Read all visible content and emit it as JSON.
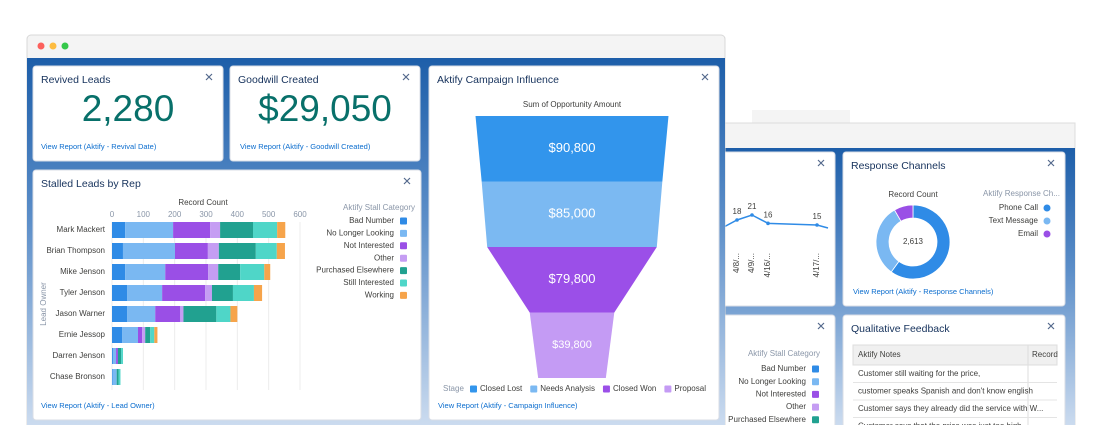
{
  "front_window": {
    "revived": {
      "title": "Revived Leads",
      "value": "2,280",
      "link": "View Report (Aktify - Revival Date)"
    },
    "goodwill": {
      "title": "Goodwill Created",
      "value": "$29,050",
      "link": "View Report (Aktify - Goodwill Created)"
    },
    "stalled": {
      "title": "Stalled Leads by Rep",
      "link": "View Report (Aktify - Lead Owner)"
    },
    "campaign": {
      "title": "Aktify Campaign Influence",
      "link": "View Report (Aktify - Campaign Influence)"
    }
  },
  "back_window": {
    "response": {
      "title": "Response Channels",
      "link": "View Report (Aktify - Response Channels)"
    },
    "feedback": {
      "title": "Qualitative Feedback",
      "columns": [
        "Aktify Notes",
        "Record"
      ],
      "rows": [
        "Customer still waiting for the price,",
        "customer speaks Spanish and don't know english",
        "Customer says they already did the service with W...",
        "Customer says that the price was just too high."
      ]
    }
  },
  "chart_data": [
    {
      "type": "hbar",
      "stacked": true,
      "x_label": "Record Count",
      "y_label": "Lead Owner",
      "legend_title": "Aktify Stall Category",
      "categories": [
        "Mark Mackert",
        "Brian Thompson",
        "Mike Jenson",
        "Tyler Jenson",
        "Jason Warner",
        "Ernie Jessop",
        "Darren Jenson",
        "Chase Bronson"
      ],
      "xlim": [
        0,
        600
      ],
      "xticks": [
        0,
        100,
        200,
        300,
        400,
        500,
        600
      ],
      "grid": true,
      "series": [
        {
          "name": "Bad Number",
          "color": "#2f8be6",
          "values": [
            42,
            35,
            42,
            48,
            48,
            32,
            3,
            2
          ]
        },
        {
          "name": "No Longer Looking",
          "color": "#7ab8f2",
          "values": [
            153,
            166,
            128,
            112,
            90,
            51,
            10,
            13
          ]
        },
        {
          "name": "Not Interested",
          "color": "#9a4fe6",
          "values": [
            118,
            105,
            137,
            137,
            80,
            13,
            6,
            0
          ]
        },
        {
          "name": "Other",
          "color": "#c59df3",
          "values": [
            32,
            35,
            32,
            22,
            10,
            10,
            0,
            0
          ]
        },
        {
          "name": "Purchased Elsewhere",
          "color": "#21a190",
          "values": [
            105,
            118,
            70,
            67,
            105,
            16,
            10,
            6
          ]
        },
        {
          "name": "Still Interested",
          "color": "#4fd6c8",
          "values": [
            77,
            67,
            77,
            67,
            45,
            13,
            6,
            6
          ]
        },
        {
          "name": "Working",
          "color": "#f6a44b",
          "values": [
            26,
            26,
            19,
            26,
            22,
            10,
            0,
            0
          ]
        }
      ]
    },
    {
      "type": "funnel",
      "x_label": "Sum of Opportunity Amount",
      "legend_title": "Stage",
      "categories": [
        "Closed Lost",
        "Needs Analysis",
        "Closed Won",
        "Proposal"
      ],
      "values": [
        90800,
        85000,
        79800,
        39800
      ],
      "value_labels": [
        "$90,800",
        "$85,000",
        "$79,800",
        "$39,800"
      ],
      "colors": [
        "#3295ec",
        "#7bb9f2",
        "#9b4fe8",
        "#c49bf4"
      ]
    },
    {
      "type": "donut",
      "x_label": "Record Count",
      "legend_title": "Aktify Response Ch...",
      "center_label": "2,613",
      "categories": [
        "Phone Call",
        "Text Message",
        "Email"
      ],
      "values": [
        1568,
        827,
        218
      ],
      "colors": [
        "#2f8be6",
        "#7ab8f2",
        "#9a4fe6"
      ]
    },
    {
      "type": "line",
      "categories": [
        "4/8/...",
        "4/9/...",
        "4/16/...",
        "4/17/..."
      ],
      "values": [
        18,
        21,
        16,
        15
      ],
      "ylim": [
        0,
        30
      ],
      "color": "#2f8be6"
    }
  ]
}
